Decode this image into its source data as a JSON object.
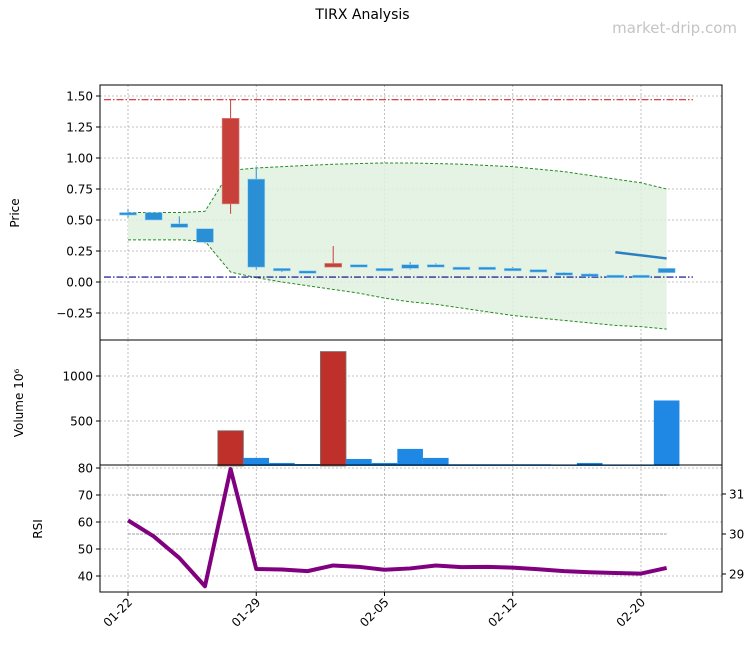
{
  "title": "TIRX Analysis",
  "watermark": "market-drip.com",
  "colors": {
    "up": "#c8403a",
    "down": "#2a8fd4",
    "volume_up": "#c0302a",
    "volume_down": "#1f88e5",
    "band": "#228b22",
    "band_fill": "#dff1df",
    "resistance": "#d62728",
    "support": "#00008b",
    "trend": "#2a7fc0",
    "rsi": "#800080"
  },
  "chart_data": [
    {
      "type": "candlestick",
      "ylabel": "Price",
      "ylim": [
        -0.4,
        1.55
      ],
      "yticks": [
        "−0.25",
        "0.00",
        "0.25",
        "0.50",
        "0.75",
        "1.00",
        "1.25",
        "1.50"
      ],
      "ytick_values": [
        -0.25,
        0,
        0.25,
        0.5,
        0.75,
        1.0,
        1.25,
        1.5
      ],
      "grid": true,
      "dates": [
        "01-22",
        "01-23",
        "01-24",
        "01-27",
        "01-28",
        "01-29",
        "01-30",
        "01-31",
        "02-03",
        "02-04",
        "02-05",
        "02-06",
        "02-07",
        "02-10",
        "02-11",
        "02-12",
        "02-13",
        "02-14",
        "02-18",
        "02-19",
        "02-20",
        "02-21"
      ],
      "open": [
        0.56,
        0.56,
        0.47,
        0.43,
        0.63,
        0.83,
        0.11,
        0.09,
        0.12,
        0.14,
        0.11,
        0.14,
        0.14,
        0.12,
        0.12,
        0.11,
        0.1,
        0.075,
        0.065,
        0.055,
        0.055,
        0.11
      ],
      "high": [
        0.59,
        0.56,
        0.53,
        0.43,
        1.47,
        0.92,
        0.11,
        0.09,
        0.29,
        0.14,
        0.11,
        0.16,
        0.15,
        0.12,
        0.12,
        0.12,
        0.1,
        0.08,
        0.07,
        0.055,
        0.055,
        0.11
      ],
      "low": [
        0.52,
        0.5,
        0.44,
        0.31,
        0.55,
        0.1,
        0.08,
        0.07,
        0.12,
        0.12,
        0.1,
        0.1,
        0.13,
        0.11,
        0.11,
        0.105,
        0.09,
        0.06,
        0.05,
        0.045,
        0.035,
        0.075
      ],
      "close": [
        0.55,
        0.5,
        0.44,
        0.32,
        1.32,
        0.12,
        0.09,
        0.07,
        0.15,
        0.12,
        0.1,
        0.11,
        0.13,
        0.11,
        0.11,
        0.105,
        0.09,
        0.065,
        0.05,
        0.045,
        0.035,
        0.075
      ],
      "band_upper": [
        0.56,
        0.56,
        0.56,
        0.57,
        0.9,
        0.92,
        0.93,
        0.94,
        0.95,
        0.955,
        0.96,
        0.96,
        0.955,
        0.95,
        0.94,
        0.93,
        0.91,
        0.89,
        0.86,
        0.83,
        0.8,
        0.75
      ],
      "band_lower": [
        0.34,
        0.34,
        0.34,
        0.33,
        0.08,
        0.035,
        0.0,
        -0.03,
        -0.06,
        -0.09,
        -0.13,
        -0.16,
        -0.18,
        -0.21,
        -0.24,
        -0.27,
        -0.29,
        -0.31,
        -0.33,
        -0.35,
        -0.36,
        -0.38
      ],
      "resistance": 1.47,
      "support": 0.04,
      "trend_line": {
        "from": "02-19",
        "to": "02-21",
        "values": [
          0.24,
          0.19
        ]
      }
    },
    {
      "type": "bar",
      "ylabel": "Volume  10⁶",
      "ylim": [
        0,
        1390
      ],
      "yticks": [
        "500",
        "1000"
      ],
      "ytick_values": [
        500,
        1000
      ],
      "grid": true,
      "values": [
        0,
        0,
        0,
        0,
        392,
        90,
        34,
        22,
        1272,
        78,
        34,
        190,
        90,
        19,
        19,
        19,
        19,
        7,
        34,
        7,
        7,
        728
      ]
    },
    {
      "type": "line",
      "ylabel": "RSI",
      "ylim": [
        34,
        80.5
      ],
      "yticks": [
        "40",
        "50",
        "60",
        "70",
        "80"
      ],
      "ytick_values": [
        40,
        50,
        60,
        70,
        80
      ],
      "right_ylim": [
        28.51,
        31.7
      ],
      "right_yticks": [
        "29",
        "30",
        "31"
      ],
      "right_ytick_values": [
        29,
        30,
        31
      ],
      "reference_lines": [
        {
          "axis": "left",
          "value": 70
        },
        {
          "axis": "right",
          "value": 30
        }
      ],
      "grid": true,
      "values": [
        60.6,
        54.7,
        46.7,
        36.2,
        79.6,
        42.6,
        42.4,
        41.8,
        43.9,
        43.4,
        42.3,
        42.8,
        43.9,
        43.3,
        43.4,
        43.1,
        42.5,
        41.8,
        41.4,
        41.1,
        40.9,
        43.0
      ],
      "xticks": [
        "01-22",
        "01-29",
        "02-05",
        "02-12",
        "02-20"
      ]
    }
  ]
}
